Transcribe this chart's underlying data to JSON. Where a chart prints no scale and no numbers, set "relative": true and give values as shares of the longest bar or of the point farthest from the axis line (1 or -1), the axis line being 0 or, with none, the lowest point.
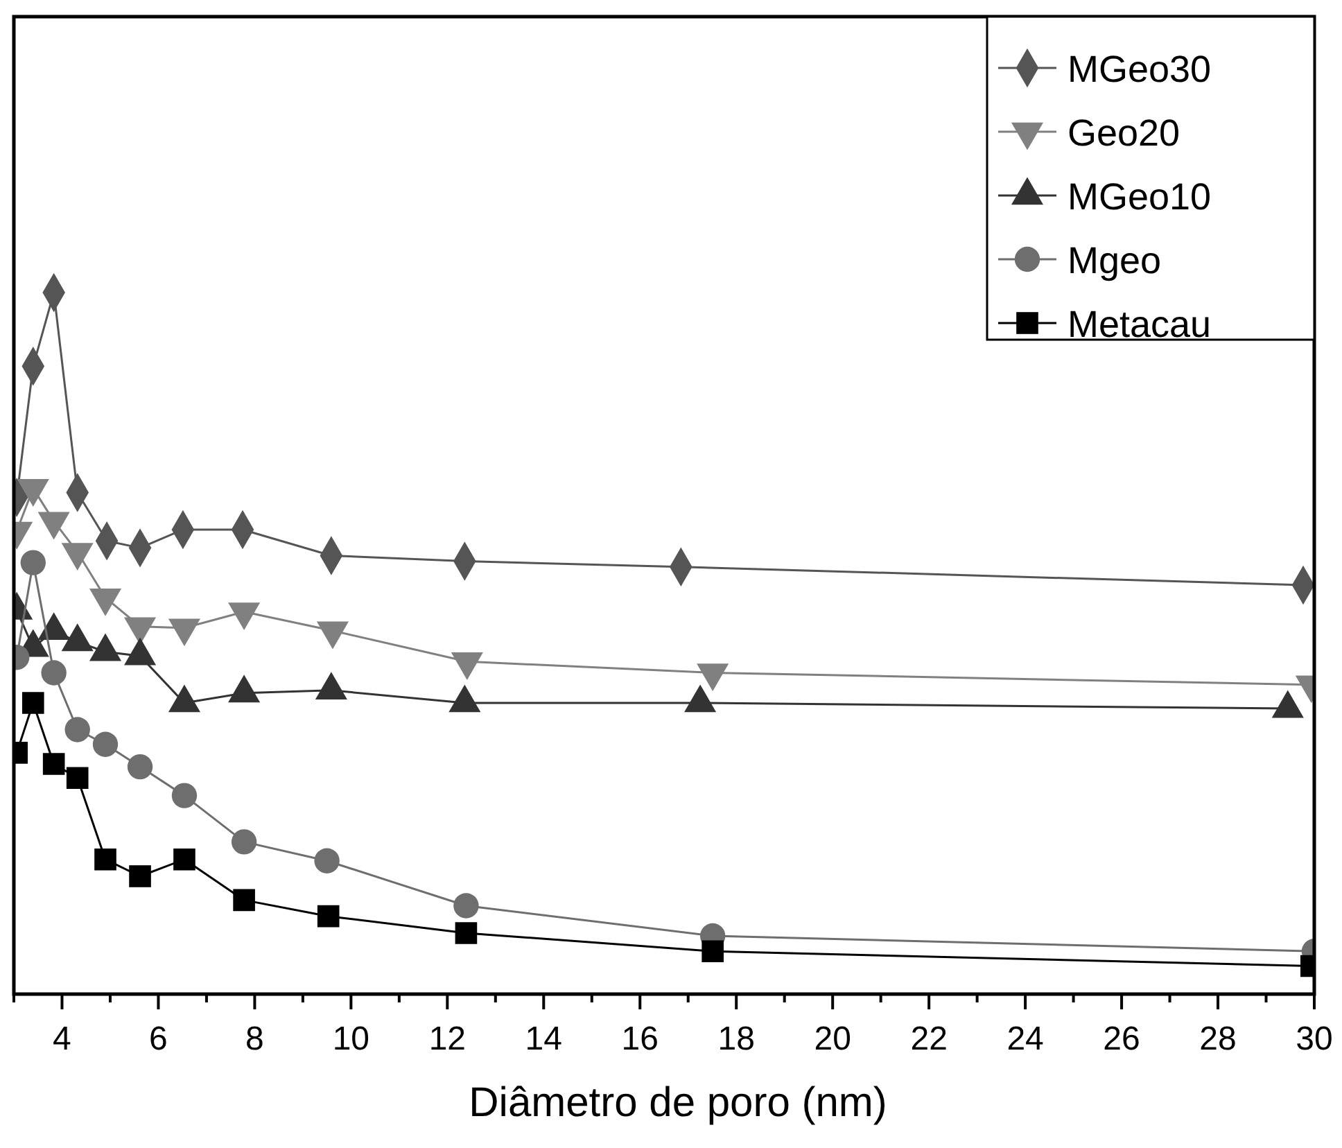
{
  "chart_data": {
    "type": "line",
    "xlabel": "Diâmetro de poro (nm)",
    "relative": true,
    "xlim": [
      3,
      30
    ],
    "xticks": [
      {
        "value": 3,
        "label": null
      },
      4,
      {
        "value": 5,
        "label": null
      },
      6,
      {
        "value": 7,
        "label": null
      },
      8,
      {
        "value": 9,
        "label": null
      },
      10,
      {
        "value": 11,
        "label": null
      },
      12,
      {
        "value": 13,
        "label": null
      },
      14,
      {
        "value": 15,
        "label": null
      },
      16,
      {
        "value": 17,
        "label": null
      },
      18,
      {
        "value": 19,
        "label": null
      },
      20,
      {
        "value": 21,
        "label": null
      },
      22,
      {
        "value": 23,
        "label": null
      },
      24,
      {
        "value": 25,
        "label": null
      },
      26,
      {
        "value": 27,
        "label": null
      },
      28,
      {
        "value": 29,
        "label": null
      },
      30
    ],
    "tick_labels": "x",
    "grid": false,
    "legend": "top right",
    "line_style": "solid",
    "series": [
      {
        "name": "MGeo30",
        "color": "#555555",
        "marker": "diamond",
        "x": [
          3.06,
          3.4,
          3.83,
          4.32,
          4.93,
          5.62,
          6.51,
          7.75,
          9.59,
          12.36,
          16.85,
          29.77
        ],
        "values": [
          0.708,
          0.895,
          1,
          0.715,
          0.646,
          0.636,
          0.662,
          0.662,
          0.625,
          0.617,
          0.609,
          0.583
        ]
      },
      {
        "name": "Geo20",
        "color": "#808080",
        "marker": "triangle-down",
        "x": [
          3.06,
          3.4,
          3.83,
          4.32,
          4.9,
          5.62,
          6.54,
          7.78,
          9.62,
          12.41,
          17.51,
          29.94
        ],
        "values": [
          0.66,
          0.721,
          0.674,
          0.63,
          0.565,
          0.524,
          0.522,
          0.545,
          0.518,
          0.474,
          0.458,
          0.441
        ]
      },
      {
        "name": "MGeo10",
        "color": "#333333",
        "marker": "triangle",
        "x": [
          3.06,
          3.4,
          3.83,
          4.32,
          4.9,
          5.62,
          6.54,
          7.78,
          9.59,
          12.36,
          17.25,
          29.45
        ],
        "values": [
          0.547,
          0.494,
          0.518,
          0.502,
          0.488,
          0.482,
          0.415,
          0.429,
          0.433,
          0.415,
          0.415,
          0.407
        ]
      },
      {
        "name": "Mgeo",
        "color": "#6e6e6e",
        "marker": "circle",
        "x": [
          3.06,
          3.4,
          3.83,
          4.32,
          4.9,
          5.62,
          6.54,
          7.78,
          9.5,
          12.39,
          17.51,
          30
        ],
        "values": [
          0.48,
          0.615,
          0.458,
          0.377,
          0.356,
          0.324,
          0.283,
          0.217,
          0.19,
          0.126,
          0.083,
          0.061
        ]
      },
      {
        "name": "Metacau",
        "color": "#000000",
        "marker": "square",
        "x": [
          3.06,
          3.4,
          3.83,
          4.32,
          4.9,
          5.62,
          6.54,
          7.78,
          9.53,
          12.39,
          17.51,
          29.94
        ],
        "values": [
          0.344,
          0.415,
          0.328,
          0.308,
          0.192,
          0.168,
          0.192,
          0.134,
          0.111,
          0.087,
          0.061,
          0.04
        ]
      }
    ]
  }
}
